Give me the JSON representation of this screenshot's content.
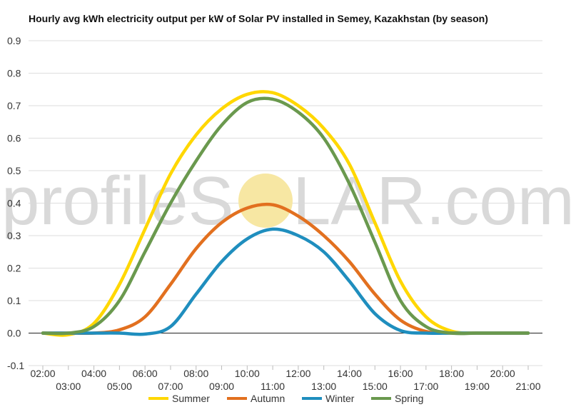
{
  "chart_data": {
    "type": "line",
    "title": "Hourly avg kWh electricity output per kW of Solar PV installed in Semey, Kazakhstan (by season)",
    "watermark": {
      "left": "profileS",
      "right": "LAR.com",
      "sun_color": "#f7e7a3"
    },
    "x": [
      "02:00",
      "03:00",
      "04:00",
      "05:00",
      "06:00",
      "07:00",
      "08:00",
      "09:00",
      "10:00",
      "11:00",
      "12:00",
      "13:00",
      "14:00",
      "15:00",
      "16:00",
      "17:00",
      "18:00",
      "19:00",
      "20:00",
      "21:00"
    ],
    "x_tick_labels_upper": [
      "02:00",
      "04:00",
      "06:00",
      "08:00",
      "10:00",
      "12:00",
      "14:00",
      "16:00",
      "18:00",
      "20:00"
    ],
    "x_tick_labels_lower": [
      "03:00",
      "05:00",
      "07:00",
      "09:00",
      "11:00",
      "13:00",
      "15:00",
      "17:00",
      "19:00",
      "21:00"
    ],
    "ylim": [
      -0.1,
      0.9
    ],
    "yticks": [
      "0.9",
      "0.8",
      "0.7",
      "0.6",
      "0.5",
      "0.4",
      "0.3",
      "0.2",
      "0.1",
      "0.0",
      "-0.1"
    ],
    "ytick_values": [
      0.9,
      0.8,
      0.7,
      0.6,
      0.5,
      0.4,
      0.3,
      0.2,
      0.1,
      0.0,
      -0.1
    ],
    "grid": true,
    "legend_position": "bottom",
    "series": [
      {
        "name": "Summer",
        "color": "#FFD700",
        "values": [
          0.0,
          -0.005,
          0.03,
          0.15,
          0.32,
          0.49,
          0.61,
          0.69,
          0.735,
          0.74,
          0.7,
          0.63,
          0.52,
          0.34,
          0.16,
          0.05,
          0.006,
          0.0,
          0.0,
          0.0
        ]
      },
      {
        "name": "Autumn",
        "color": "#E2701F",
        "values": [
          0.0,
          0.0,
          0.0,
          0.01,
          0.05,
          0.15,
          0.26,
          0.34,
          0.385,
          0.395,
          0.36,
          0.3,
          0.22,
          0.12,
          0.04,
          0.005,
          0.0,
          0.0,
          0.0,
          0.0
        ]
      },
      {
        "name": "Winter",
        "color": "#1F8EBE",
        "values": [
          0.0,
          0.0,
          0.0,
          0.0,
          -0.003,
          0.02,
          0.12,
          0.22,
          0.29,
          0.32,
          0.3,
          0.25,
          0.16,
          0.06,
          0.008,
          0.0,
          0.0,
          0.0,
          0.0,
          0.0
        ]
      },
      {
        "name": "Spring",
        "color": "#6A994E",
        "values": [
          0.0,
          0.0,
          0.02,
          0.1,
          0.25,
          0.4,
          0.53,
          0.64,
          0.71,
          0.72,
          0.68,
          0.6,
          0.46,
          0.28,
          0.1,
          0.02,
          0.0,
          0.0,
          0.0,
          0.0
        ]
      }
    ]
  }
}
